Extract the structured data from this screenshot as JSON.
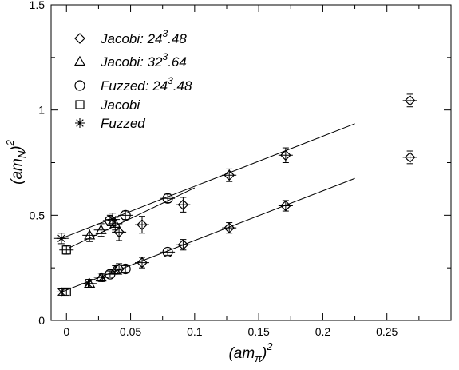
{
  "chart_data": {
    "type": "scatter",
    "title": "",
    "xlabel": {
      "base": "(am",
      "sub": "π",
      "close": ")",
      "sup": "2"
    },
    "ylabel": {
      "base": "(am",
      "sub": "N",
      "close": ")",
      "sup": "2"
    },
    "xlim": [
      -0.012,
      0.3
    ],
    "ylim": [
      0,
      1.5
    ],
    "xticks": [
      0,
      0.05,
      0.1,
      0.15,
      0.2,
      0.25
    ],
    "xtick_labels": [
      "0",
      "0.05",
      "0.1",
      "0.15",
      "0.2",
      "0.25"
    ],
    "yticks": [
      0,
      0.5,
      1,
      1.5
    ],
    "ytick_labels": [
      "0",
      "0.5",
      "1",
      "1.5"
    ],
    "grid": false,
    "legend_position": "top-left",
    "legend": [
      {
        "marker": "diamond",
        "label_parts": [
          "Jacobi: 24",
          "3",
          ".48"
        ]
      },
      {
        "marker": "triangle",
        "label_parts": [
          "Jacobi: 32",
          "3",
          ".64"
        ]
      },
      {
        "marker": "circle",
        "label_parts": [
          "Fuzzed: 24",
          "3",
          ".48"
        ]
      },
      {
        "marker": "square",
        "label_parts": [
          "Jacobi"
        ]
      },
      {
        "marker": "asterisk",
        "label_parts": [
          "Fuzzed"
        ]
      }
    ],
    "series": [
      {
        "marker": "diamond",
        "points": [
          {
            "x": 0.041,
            "y": 0.42,
            "err": 0.04
          },
          {
            "x": 0.059,
            "y": 0.455,
            "err": 0.04
          },
          {
            "x": 0.091,
            "y": 0.55,
            "err": 0.035
          },
          {
            "x": 0.127,
            "y": 0.69,
            "err": 0.03
          },
          {
            "x": 0.171,
            "y": 0.785,
            "err": 0.035
          },
          {
            "x": 0.268,
            "y": 1.045,
            "err": 0.03
          },
          {
            "x": 0.268,
            "y": 0.775,
            "err": 0.03
          },
          {
            "x": 0.041,
            "y": 0.245,
            "err": 0.025
          },
          {
            "x": 0.059,
            "y": 0.275,
            "err": 0.025
          },
          {
            "x": 0.091,
            "y": 0.36,
            "err": 0.025
          },
          {
            "x": 0.127,
            "y": 0.44,
            "err": 0.025
          },
          {
            "x": 0.171,
            "y": 0.545,
            "err": 0.025
          }
        ]
      },
      {
        "marker": "triangle",
        "points": [
          {
            "x": 0.018,
            "y": 0.405,
            "err": 0.03
          },
          {
            "x": 0.027,
            "y": 0.43,
            "err": 0.03
          },
          {
            "x": 0.038,
            "y": 0.46,
            "err": 0.03
          },
          {
            "x": 0.018,
            "y": 0.175,
            "err": 0.02
          },
          {
            "x": 0.027,
            "y": 0.205,
            "err": 0.02
          },
          {
            "x": 0.038,
            "y": 0.24,
            "err": 0.02
          }
        ]
      },
      {
        "marker": "circle",
        "points": [
          {
            "x": 0.034,
            "y": 0.475,
            "err": 0.025
          },
          {
            "x": 0.046,
            "y": 0.5,
            "err": 0.02
          },
          {
            "x": 0.079,
            "y": 0.58,
            "err": 0.02
          },
          {
            "x": 0.034,
            "y": 0.22,
            "err": 0.015
          },
          {
            "x": 0.046,
            "y": 0.245,
            "err": 0.015
          },
          {
            "x": 0.079,
            "y": 0.325,
            "err": 0.015
          }
        ]
      },
      {
        "marker": "square",
        "points": [
          {
            "x": 0.0,
            "y": 0.335,
            "err": 0.02
          },
          {
            "x": 0.0,
            "y": 0.135,
            "err": 0.015
          }
        ]
      },
      {
        "marker": "asterisk",
        "points": [
          {
            "x": -0.004,
            "y": 0.39,
            "err": 0.025
          },
          {
            "x": -0.004,
            "y": 0.135,
            "err": 0.015
          },
          {
            "x": 0.017,
            "y": 0.175,
            "err": 0.02
          },
          {
            "x": 0.028,
            "y": 0.205,
            "err": 0.02
          },
          {
            "x": 0.036,
            "y": 0.48,
            "err": 0.03
          }
        ]
      }
    ],
    "fit_lines": [
      {
        "x": [
          -0.004,
          0.225
        ],
        "y": [
          0.39,
          0.935
        ]
      },
      {
        "x": [
          0.002,
          0.1
        ],
        "y": [
          0.345,
          0.63
        ]
      },
      {
        "x": [
          -0.004,
          0.225
        ],
        "y": [
          0.135,
          0.675
        ]
      }
    ]
  }
}
